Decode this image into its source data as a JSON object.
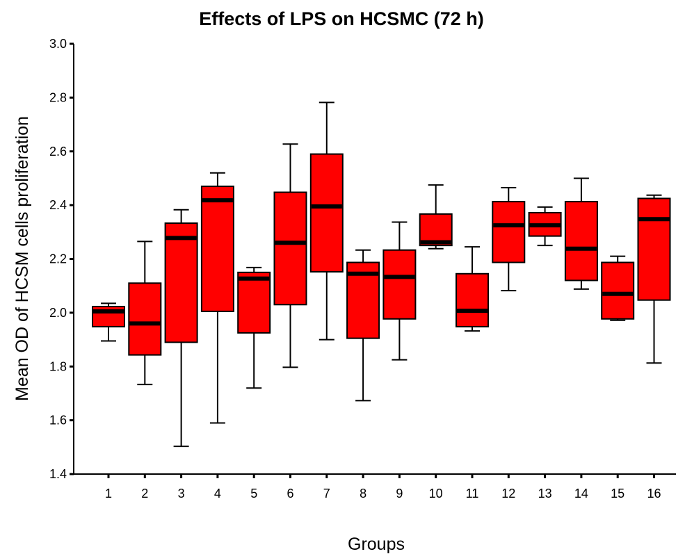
{
  "chart_data": {
    "type": "boxplot",
    "title": "Effects of LPS on HCSMC (72 h)",
    "xlabel": "Groups",
    "ylabel": "Mean OD of HCSM cells proliferation",
    "ylim": [
      1.4,
      3.0
    ],
    "yticks": [
      "1.4",
      "1.6",
      "1.8",
      "2.0",
      "2.2",
      "2.4",
      "2.6",
      "2.8",
      "3.0"
    ],
    "box_color": "#ff0000",
    "median_color": "#000000",
    "grid": false,
    "legend": "none",
    "groups": [
      {
        "label": "1",
        "min": 1.895,
        "q1": 1.948,
        "median": 2.005,
        "q3": 2.023,
        "max": 2.035
      },
      {
        "label": "2",
        "min": 1.733,
        "q1": 1.843,
        "median": 1.96,
        "q3": 2.11,
        "max": 2.265
      },
      {
        "label": "3",
        "min": 1.503,
        "q1": 1.89,
        "median": 2.278,
        "q3": 2.333,
        "max": 2.383
      },
      {
        "label": "4",
        "min": 1.59,
        "q1": 2.005,
        "median": 2.418,
        "q3": 2.47,
        "max": 2.52
      },
      {
        "label": "5",
        "min": 1.72,
        "q1": 1.925,
        "median": 2.127,
        "q3": 2.15,
        "max": 2.168
      },
      {
        "label": "6",
        "min": 1.797,
        "q1": 2.03,
        "median": 2.26,
        "q3": 2.448,
        "max": 2.627
      },
      {
        "label": "7",
        "min": 1.9,
        "q1": 2.152,
        "median": 2.395,
        "q3": 2.59,
        "max": 2.782
      },
      {
        "label": "8",
        "min": 1.673,
        "q1": 1.905,
        "median": 2.145,
        "q3": 2.187,
        "max": 2.233
      },
      {
        "label": "9",
        "min": 1.825,
        "q1": 1.977,
        "median": 2.133,
        "q3": 2.233,
        "max": 2.337
      },
      {
        "label": "10",
        "min": 2.238,
        "q1": 2.25,
        "median": 2.262,
        "q3": 2.367,
        "max": 2.475
      },
      {
        "label": "11",
        "min": 1.932,
        "q1": 1.948,
        "median": 2.007,
        "q3": 2.145,
        "max": 2.245
      },
      {
        "label": "12",
        "min": 2.082,
        "q1": 2.187,
        "median": 2.325,
        "q3": 2.413,
        "max": 2.465
      },
      {
        "label": "13",
        "min": 2.25,
        "q1": 2.285,
        "median": 2.325,
        "q3": 2.372,
        "max": 2.393
      },
      {
        "label": "14",
        "min": 2.088,
        "q1": 2.12,
        "median": 2.238,
        "q3": 2.413,
        "max": 2.5
      },
      {
        "label": "15",
        "min": 1.972,
        "q1": 1.977,
        "median": 2.07,
        "q3": 2.187,
        "max": 2.21
      },
      {
        "label": "16",
        "min": 1.813,
        "q1": 2.047,
        "median": 2.348,
        "q3": 2.425,
        "max": 2.437
      }
    ]
  }
}
